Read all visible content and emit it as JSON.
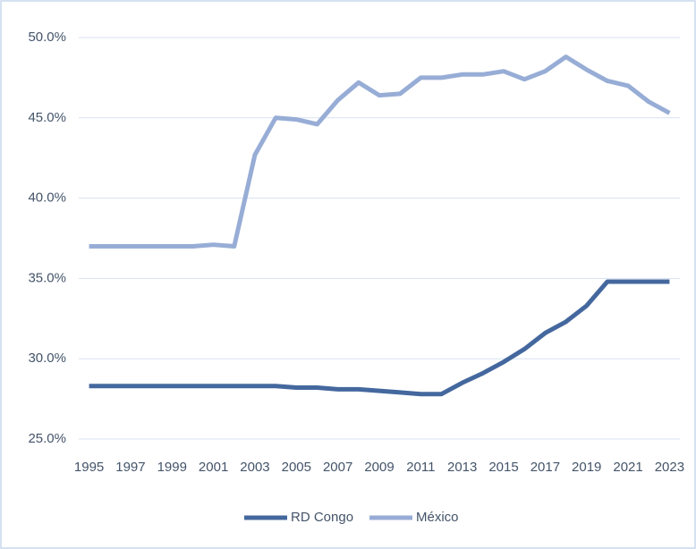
{
  "chart_data": {
    "type": "line",
    "categories": [
      "1995",
      null,
      "1997",
      null,
      "1999",
      null,
      "2001",
      null,
      "2003",
      null,
      "2005",
      null,
      "2007",
      null,
      "2009",
      null,
      "2011",
      null,
      "2013",
      null,
      "2015",
      null,
      "2017",
      null,
      "2019",
      null,
      "2021",
      null,
      "2023"
    ],
    "series": [
      {
        "name": "RD Congo",
        "color": "#44689e",
        "values": [
          28.3,
          28.3,
          28.3,
          28.3,
          28.3,
          28.3,
          28.3,
          28.3,
          28.3,
          28.3,
          28.2,
          28.2,
          28.1,
          28.1,
          28.0,
          27.9,
          27.8,
          27.8,
          28.5,
          29.1,
          29.8,
          30.6,
          31.6,
          32.3,
          33.3,
          34.8,
          34.8,
          34.8,
          34.8
        ]
      },
      {
        "name": "México",
        "color": "#97add6",
        "values": [
          37.0,
          37.0,
          37.0,
          37.0,
          37.0,
          37.0,
          37.1,
          37.0,
          42.7,
          45.0,
          44.9,
          44.6,
          46.1,
          47.2,
          46.4,
          46.5,
          47.5,
          47.5,
          47.7,
          47.7,
          47.9,
          47.4,
          47.9,
          48.8,
          48.0,
          47.3,
          47.0,
          46.0,
          45.3
        ]
      }
    ],
    "ylim": [
      25,
      50
    ],
    "yticks": [
      {
        "value": 25,
        "label": "25.0%"
      },
      {
        "value": 30,
        "label": "30.0%"
      },
      {
        "value": 35,
        "label": "35.0%"
      },
      {
        "value": 40,
        "label": "40.0%"
      },
      {
        "value": 45,
        "label": "45.0%"
      },
      {
        "value": 50,
        "label": "50.0%"
      }
    ],
    "grid": true,
    "legend": "bottom"
  }
}
